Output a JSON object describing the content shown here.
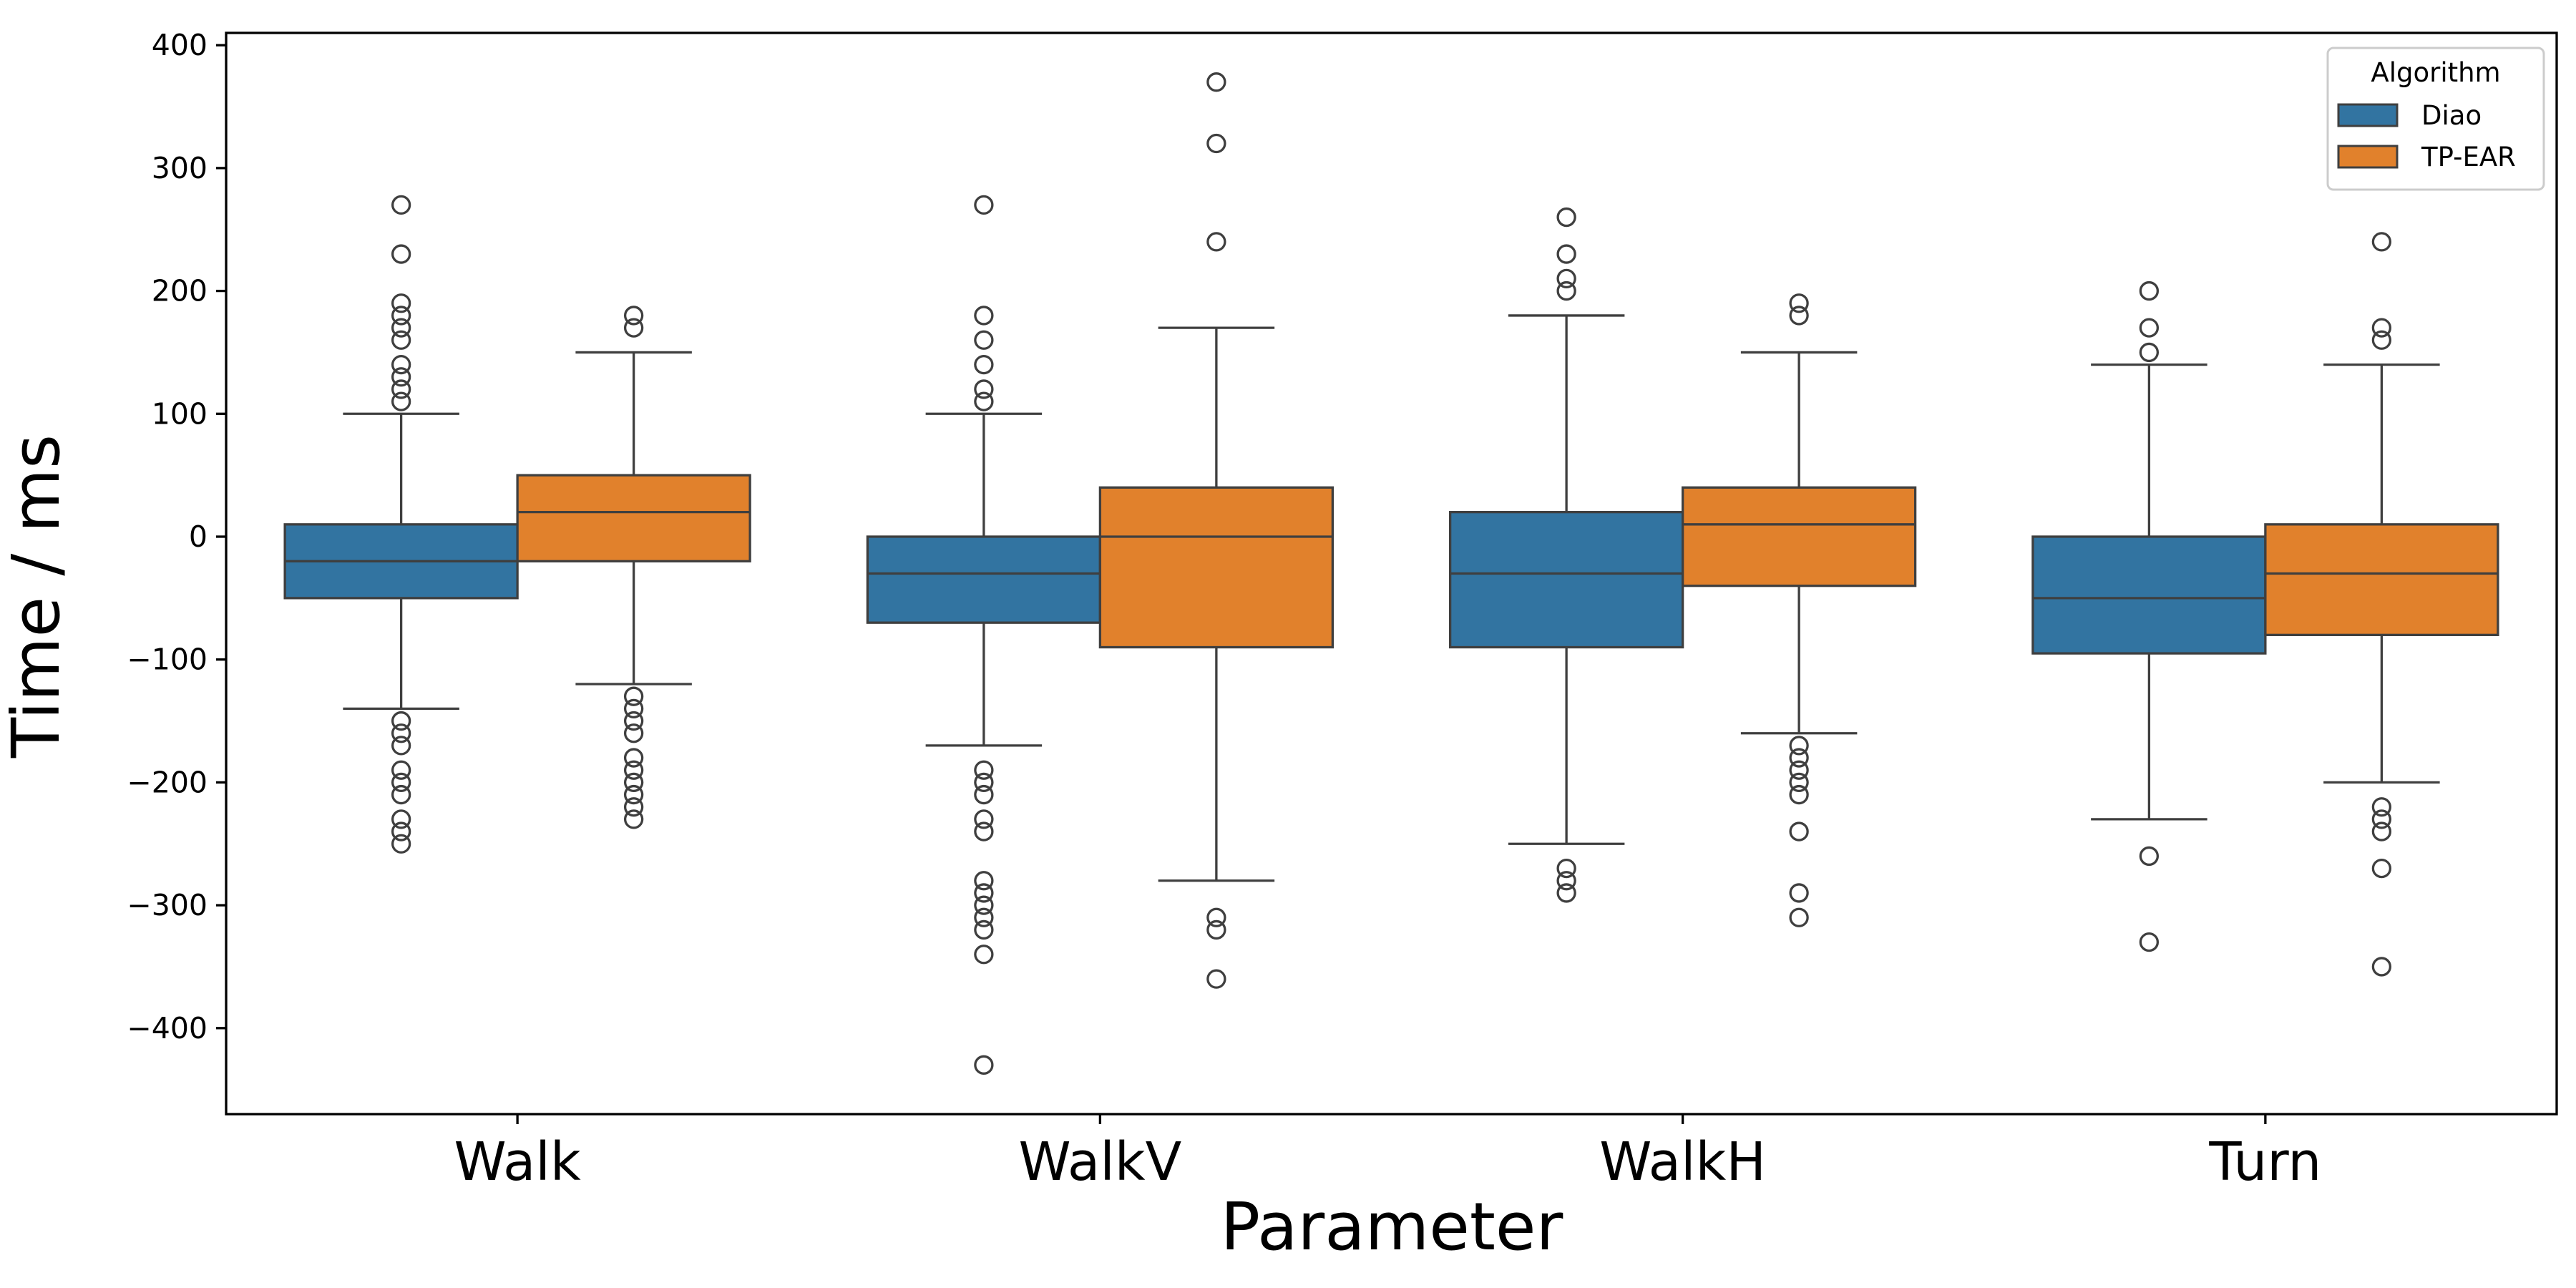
{
  "chart_data": {
    "type": "box",
    "xlabel": "Parameter",
    "ylabel": "Time / ms",
    "ylim": [
      -470,
      410
    ],
    "yticks": [
      400,
      300,
      200,
      100,
      0,
      -100,
      -200,
      -300,
      -400
    ],
    "ytick_labels": [
      "400",
      "300",
      "200",
      "100",
      "0",
      "−100",
      "−200",
      "−300",
      "−400"
    ],
    "categories": [
      "Walk",
      "WalkV",
      "WalkH",
      "Turn"
    ],
    "grid": false,
    "legend": {
      "title": "Algorithm",
      "placement": "top-right",
      "entries": [
        "Diao",
        "TP-EAR"
      ]
    },
    "series": [
      {
        "name": "Diao",
        "color": "#3274a1",
        "boxes": [
          {
            "q1": -50,
            "median": -20,
            "q3": 10,
            "whisker_low": -140,
            "whisker_high": 100,
            "outliers": [
              270,
              230,
              190,
              180,
              170,
              160,
              140,
              130,
              120,
              110,
              -150,
              -160,
              -170,
              -190,
              -200,
              -210,
              -230,
              -240,
              -250
            ]
          },
          {
            "q1": -70,
            "median": -30,
            "q3": 0,
            "whisker_low": -170,
            "whisker_high": 100,
            "outliers": [
              270,
              180,
              160,
              140,
              120,
              110,
              -190,
              -200,
              -210,
              -230,
              -240,
              -280,
              -290,
              -300,
              -310,
              -320,
              -340,
              -430
            ]
          },
          {
            "q1": -90,
            "median": -30,
            "q3": 20,
            "whisker_low": -250,
            "whisker_high": 180,
            "outliers": [
              260,
              230,
              210,
              200,
              -270,
              -280,
              -290
            ]
          },
          {
            "q1": -95,
            "median": -50,
            "q3": 0,
            "whisker_low": -230,
            "whisker_high": 140,
            "outliers": [
              200,
              170,
              150,
              -260,
              -330
            ]
          }
        ]
      },
      {
        "name": "TP-EAR",
        "color": "#e1812c",
        "boxes": [
          {
            "q1": -20,
            "median": 20,
            "q3": 50,
            "whisker_low": -120,
            "whisker_high": 150,
            "outliers": [
              180,
              170,
              -130,
              -140,
              -150,
              -160,
              -180,
              -190,
              -200,
              -210,
              -220,
              -230
            ]
          },
          {
            "q1": -90,
            "median": 0,
            "q3": 40,
            "whisker_low": -280,
            "whisker_high": 170,
            "outliers": [
              370,
              320,
              240,
              -310,
              -320,
              -360
            ]
          },
          {
            "q1": -40,
            "median": 10,
            "q3": 40,
            "whisker_low": -160,
            "whisker_high": 150,
            "outliers": [
              190,
              180,
              -170,
              -180,
              -190,
              -200,
              -210,
              -240,
              -290,
              -310
            ]
          },
          {
            "q1": -80,
            "median": -30,
            "q3": 10,
            "whisker_low": -200,
            "whisker_high": 140,
            "outliers": [
              240,
              170,
              160,
              -220,
              -230,
              -240,
              -270,
              -350
            ]
          }
        ]
      }
    ]
  }
}
